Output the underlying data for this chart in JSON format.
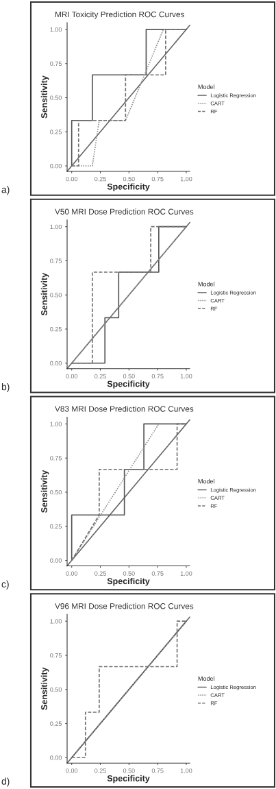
{
  "chart_data": [
    {
      "type": "line",
      "title": "MRI Toxicity Prediction ROC Curves",
      "xlabel": "Specificity",
      "ylabel": "Sensitivity",
      "legend_title": "Model",
      "legend": "right",
      "grid": false,
      "xlim": [
        -0.04,
        1.03
      ],
      "ylim": [
        -0.04,
        1.05
      ],
      "xticks": [
        {
          "value": 0,
          "label": "0.00"
        },
        {
          "value": 0.25,
          "label": "0.25"
        },
        {
          "value": 0.5,
          "label": "0.50"
        },
        {
          "value": 0.75,
          "label": "0.75"
        },
        {
          "value": 1,
          "label": "1.00"
        }
      ],
      "yticks": [
        {
          "value": 0,
          "label": "0.00"
        },
        {
          "value": 0.25,
          "label": "0.25"
        },
        {
          "value": 0.5,
          "label": "0.50"
        },
        {
          "value": 0.75,
          "label": "0.75"
        },
        {
          "value": 1,
          "label": "1.00"
        }
      ],
      "annotations": [
        "a)"
      ],
      "series": [
        {
          "type": "line",
          "color": "#666666",
          "line_style": "solid",
          "x": [
            -0.04,
            1.03
          ],
          "values": [
            -0.04,
            1.03
          ]
        },
        {
          "type": "line",
          "name": "Logistic Regression",
          "color": "#555555",
          "line_style": "solid",
          "x": [
            0,
            0,
            0.18,
            0.18,
            0.65,
            0.65,
            1
          ],
          "values": [
            0,
            0.333,
            0.333,
            0.667,
            0.667,
            1,
            1
          ]
        },
        {
          "type": "line",
          "name": "CART",
          "color": "#909090",
          "line_style": "dotted",
          "x": [
            0,
            0.18,
            0.24,
            0.47,
            0.8,
            1
          ],
          "values": [
            0,
            0,
            0.333,
            0.333,
            1,
            1
          ]
        },
        {
          "type": "line",
          "name": "RF",
          "color": "#707070",
          "line_style": "dashed",
          "x": [
            0,
            0.06,
            0.06,
            0.47,
            0.47,
            0.82,
            0.82,
            1
          ],
          "values": [
            0,
            0,
            0.333,
            0.333,
            0.667,
            0.667,
            1,
            1
          ]
        }
      ]
    },
    {
      "type": "line",
      "title": "V50 MRI Dose Prediction ROC Curves",
      "xlabel": "Specificity",
      "ylabel": "Sensitivity",
      "legend_title": "Model",
      "legend": "right",
      "grid": false,
      "xlim": [
        -0.04,
        1.03
      ],
      "ylim": [
        -0.04,
        1.05
      ],
      "xticks": [
        {
          "value": 0,
          "label": "0.00"
        },
        {
          "value": 0.25,
          "label": "0.25"
        },
        {
          "value": 0.5,
          "label": "0.50"
        },
        {
          "value": 0.75,
          "label": "0.75"
        },
        {
          "value": 1,
          "label": "1.00"
        }
      ],
      "yticks": [
        {
          "value": 0,
          "label": "0.00"
        },
        {
          "value": 0.25,
          "label": "0.25"
        },
        {
          "value": 0.5,
          "label": "0.50"
        },
        {
          "value": 0.75,
          "label": "0.75"
        },
        {
          "value": 1,
          "label": "1.00"
        }
      ],
      "annotations": [
        "b)"
      ],
      "series": [
        {
          "type": "line",
          "color": "#666666",
          "line_style": "solid",
          "x": [
            -0.04,
            1.03
          ],
          "values": [
            -0.04,
            1.03
          ]
        },
        {
          "type": "line",
          "name": "Logistic Regression",
          "color": "#555555",
          "line_style": "solid",
          "x": [
            0,
            0.29,
            0.29,
            0.41,
            0.41,
            0.76,
            0.76,
            1
          ],
          "values": [
            0,
            0,
            0.333,
            0.333,
            0.667,
            0.667,
            1,
            1
          ]
        },
        {
          "type": "line",
          "name": "CART",
          "color": "#909090",
          "line_style": "dotted",
          "x": [
            0,
            1
          ],
          "values": [
            0,
            1
          ]
        },
        {
          "type": "line",
          "name": "RF",
          "color": "#707070",
          "line_style": "dashed",
          "x": [
            0,
            0.18,
            0.18,
            0.69,
            0.69,
            1
          ],
          "values": [
            0,
            0,
            0.667,
            0.667,
            1,
            1
          ]
        }
      ]
    },
    {
      "type": "line",
      "title": "V83 MRI Dose Prediction ROC Curves",
      "xlabel": "Specificity",
      "ylabel": "Sensitivity",
      "legend_title": "Model",
      "legend": "right",
      "grid": false,
      "xlim": [
        -0.04,
        1.03
      ],
      "ylim": [
        -0.04,
        1.05
      ],
      "xticks": [
        {
          "value": 0,
          "label": "0.00"
        },
        {
          "value": 0.25,
          "label": "0.25"
        },
        {
          "value": 0.5,
          "label": "0.50"
        },
        {
          "value": 0.75,
          "label": "0.75"
        },
        {
          "value": 1,
          "label": "1.00"
        }
      ],
      "yticks": [
        {
          "value": 0,
          "label": "0.00"
        },
        {
          "value": 0.25,
          "label": "0.25"
        },
        {
          "value": 0.5,
          "label": "0.50"
        },
        {
          "value": 0.75,
          "label": "0.75"
        },
        {
          "value": 1,
          "label": "1.00"
        }
      ],
      "annotations": [
        "c)"
      ],
      "series": [
        {
          "type": "line",
          "color": "#666666",
          "line_style": "solid",
          "x": [
            -0.04,
            1.03
          ],
          "values": [
            -0.04,
            1.03
          ]
        },
        {
          "type": "line",
          "name": "Logistic Regression",
          "color": "#555555",
          "line_style": "solid",
          "x": [
            0,
            0,
            0.46,
            0.46,
            0.63,
            0.63,
            1
          ],
          "values": [
            0,
            0.333,
            0.333,
            0.667,
            0.667,
            1,
            1
          ]
        },
        {
          "type": "line",
          "name": "CART",
          "color": "#909090",
          "line_style": "dotted",
          "x": [
            0,
            0.76,
            1
          ],
          "values": [
            0,
            1,
            1
          ]
        },
        {
          "type": "line",
          "name": "RF",
          "color": "#707070",
          "line_style": "dashed",
          "x": [
            0,
            0.24,
            0.24,
            0.92,
            0.92,
            1
          ],
          "values": [
            0,
            0.333,
            0.667,
            0.667,
            1,
            1
          ]
        }
      ]
    },
    {
      "type": "line",
      "title": "V96 MRI Dose Prediction ROC Curves",
      "xlabel": "Specificity",
      "ylabel": "Sensitivity",
      "legend_title": "Model",
      "legend": "right",
      "grid": false,
      "xlim": [
        -0.04,
        1.03
      ],
      "ylim": [
        -0.04,
        1.05
      ],
      "xticks": [
        {
          "value": 0,
          "label": "0.00"
        },
        {
          "value": 0.25,
          "label": "0.25"
        },
        {
          "value": 0.5,
          "label": "0.50"
        },
        {
          "value": 0.75,
          "label": "0.75"
        },
        {
          "value": 1,
          "label": "1.00"
        }
      ],
      "yticks": [
        {
          "value": 0,
          "label": "0.00"
        },
        {
          "value": 0.25,
          "label": "0.25"
        },
        {
          "value": 0.5,
          "label": "0.50"
        },
        {
          "value": 0.75,
          "label": "0.75"
        },
        {
          "value": 1,
          "label": "1.00"
        }
      ],
      "annotations": [
        "d)"
      ],
      "series": [
        {
          "type": "line",
          "color": "#666666",
          "line_style": "solid",
          "x": [
            -0.04,
            1.03
          ],
          "values": [
            -0.04,
            1.03
          ]
        },
        {
          "type": "line",
          "name": "Logistic Regression",
          "color": "#555555",
          "line_style": "solid",
          "x": [
            0,
            1
          ],
          "values": [
            0,
            1
          ]
        },
        {
          "type": "line",
          "name": "CART",
          "color": "#909090",
          "line_style": "dotted",
          "x": [
            0,
            1
          ],
          "values": [
            0,
            1
          ]
        },
        {
          "type": "line",
          "name": "RF",
          "color": "#707070",
          "line_style": "dashed",
          "x": [
            0,
            0.12,
            0.12,
            0.24,
            0.24,
            0.92,
            0.92,
            1
          ],
          "values": [
            0,
            0,
            0.333,
            0.333,
            0.667,
            0.667,
            1,
            1
          ]
        }
      ]
    }
  ]
}
